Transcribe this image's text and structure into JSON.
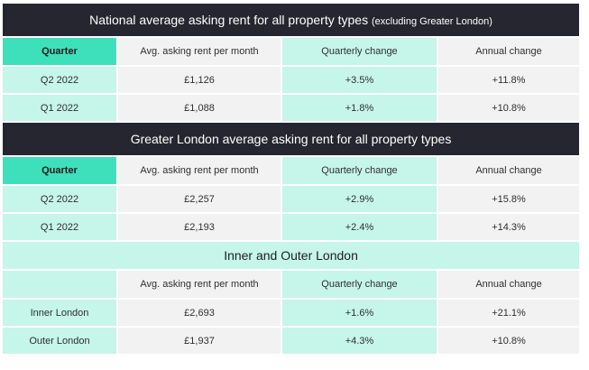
{
  "national": {
    "title_main": "National average asking rent for all property types ",
    "title_note": "(excluding Greater London)",
    "headers": [
      "Quarter",
      "Avg. asking rent per month",
      "Quarterly change",
      "Annual change"
    ],
    "rows": [
      [
        "Q2 2022",
        "£1,126",
        "+3.5%",
        "+11.8%"
      ],
      [
        "Q1 2022",
        "£1,088",
        "+1.8%",
        "+10.8%"
      ]
    ]
  },
  "greater_london": {
    "title": "Greater London average asking rent for all property types",
    "headers": [
      "Quarter",
      "Avg. asking rent per month",
      "Quarterly change",
      "Annual change"
    ],
    "rows": [
      [
        "Q2 2022",
        "£2,257",
        "+2.9%",
        "+15.8%"
      ],
      [
        "Q1 2022",
        "£2,193",
        "+2.4%",
        "+14.3%"
      ]
    ]
  },
  "inner_outer": {
    "title": "Inner and Outer London",
    "headers": [
      "",
      "Avg. asking rent per month",
      "Quarterly change",
      "Annual change"
    ],
    "rows": [
      [
        "Inner London",
        "£2,693",
        "+1.6%",
        "+21.1%"
      ],
      [
        "Outer London",
        "£1,937",
        "+4.3%",
        "+10.8%"
      ]
    ]
  }
}
